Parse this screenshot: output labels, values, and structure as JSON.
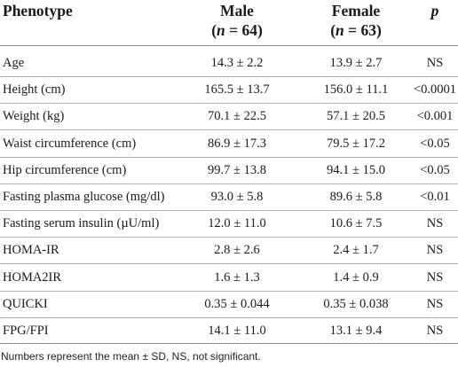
{
  "table": {
    "headers": {
      "phenotype": "Phenotype",
      "male": "Male",
      "male_n_open": "(",
      "male_n_var": "n",
      "male_n_rest": " = 64)",
      "female": "Female",
      "female_n_open": "(",
      "female_n_var": "n",
      "female_n_rest": " = 63)",
      "p": "p"
    },
    "rows": [
      {
        "phenotype": "Age",
        "male": "14.3 ± 2.2",
        "female": "13.9 ± 2.7",
        "p": "NS"
      },
      {
        "phenotype": "Height (cm)",
        "male": "165.5 ± 13.7",
        "female": "156.0 ± 11.1",
        "p": "<0.0001"
      },
      {
        "phenotype": "Weight (kg)",
        "male": "70.1 ± 22.5",
        "female": "57.1 ± 20.5",
        "p": "<0.001"
      },
      {
        "phenotype": "Waist circumference (cm)",
        "male": "86.9 ± 17.3",
        "female": "79.5 ± 17.2",
        "p": "<0.05"
      },
      {
        "phenotype": "Hip circumference (cm)",
        "male": "99.7 ± 13.8",
        "female": "94.1 ± 15.0",
        "p": "<0.05"
      },
      {
        "phenotype": "Fasting plasma glucose (mg/dl)",
        "male": "93.0 ± 5.8",
        "female": "89.6 ± 5.8",
        "p": "<0.01"
      },
      {
        "phenotype": "Fasting serum insulin (µU/ml)",
        "male": "12.0 ± 11.0",
        "female": "10.6 ± 7.5",
        "p": "NS"
      },
      {
        "phenotype": "HOMA-IR",
        "male": "2.8 ± 2.6",
        "female": "2.4 ± 1.7",
        "p": "NS"
      },
      {
        "phenotype": "HOMA2IR",
        "male": "1.6 ± 1.3",
        "female": "1.4 ± 0.9",
        "p": "NS"
      },
      {
        "phenotype": "QUICKI",
        "male": "0.35 ± 0.044",
        "female": "0.35 ± 0.038",
        "p": "NS"
      },
      {
        "phenotype": "FPG/FPI",
        "male": "14.1 ± 11.0",
        "female": "13.1 ± 9.4",
        "p": "NS"
      }
    ],
    "footnote": "Numbers represent the mean ± SD, NS, not significant."
  }
}
